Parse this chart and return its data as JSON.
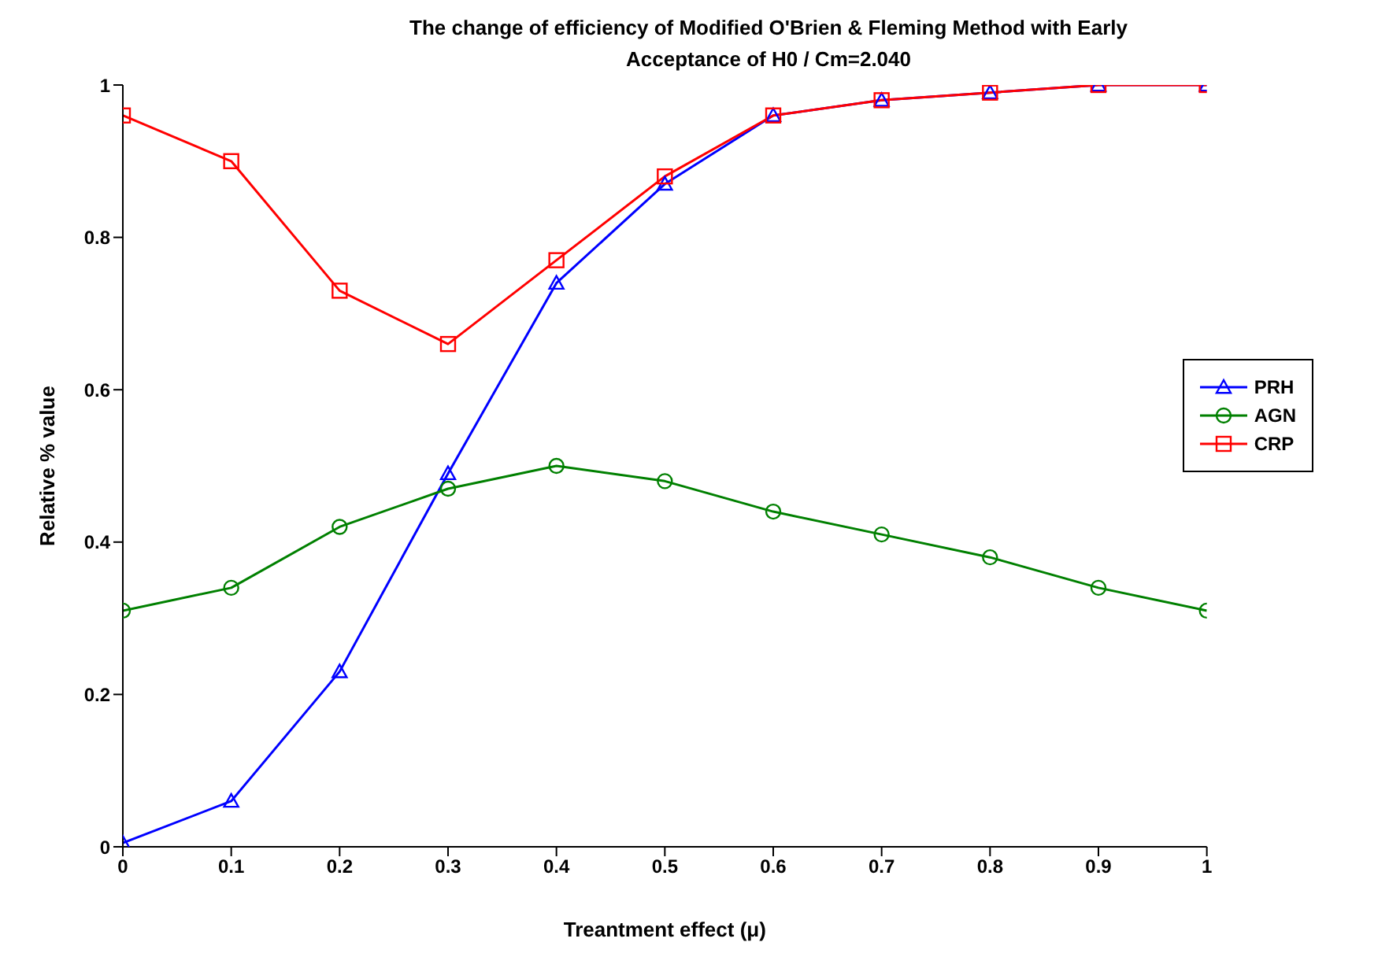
{
  "chart_data": {
    "type": "line",
    "title": "The change of efficiency of Modified O'Brien & Fleming Method with Early Acceptance of H0 / Cm=2.040",
    "xlabel": "Treantment effect (μ)",
    "ylabel": "Relative % value",
    "x": [
      0,
      0.1,
      0.2,
      0.3,
      0.4,
      0.5,
      0.6,
      0.7,
      0.8,
      0.9,
      1
    ],
    "xlim": [
      0,
      1
    ],
    "xticks": [
      0,
      0.1,
      0.2,
      0.3,
      0.4,
      0.5,
      0.6,
      0.7,
      0.8,
      0.9,
      1
    ],
    "ylim": [
      0,
      1
    ],
    "yticks": [
      0,
      0.2,
      0.4,
      0.6,
      0.8,
      1
    ],
    "grid": false,
    "legend": "right",
    "series": [
      {
        "name": "PRH",
        "color": "#0000ff",
        "marker": "triangle",
        "values": [
          0.005,
          0.06,
          0.23,
          0.49,
          0.74,
          0.87,
          0.96,
          0.98,
          0.99,
          1.0,
          1.0
        ]
      },
      {
        "name": "AGN",
        "color": "#008000",
        "marker": "circle",
        "values": [
          0.31,
          0.34,
          0.42,
          0.47,
          0.5,
          0.48,
          0.44,
          0.41,
          0.38,
          0.34,
          0.31
        ]
      },
      {
        "name": "CRP",
        "color": "#ff0000",
        "marker": "square",
        "values": [
          0.96,
          0.9,
          0.73,
          0.66,
          0.77,
          0.88,
          0.96,
          0.98,
          0.99,
          1.0,
          1.0
        ]
      }
    ]
  }
}
